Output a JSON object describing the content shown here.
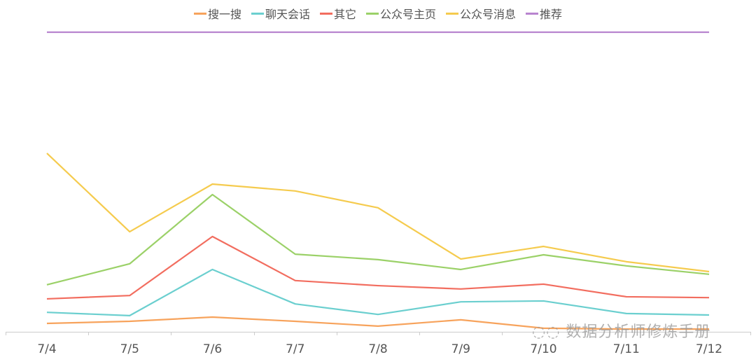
{
  "chart_data": {
    "type": "line",
    "categories": [
      "7/4",
      "7/5",
      "7/6",
      "7/7",
      "7/8",
      "7/9",
      "7/10",
      "7/11",
      "7/12"
    ],
    "ylim": [
      0,
      100
    ],
    "grid": false,
    "legend": "top",
    "series": [
      {
        "name": "搜一搜",
        "color": "#f7a35c",
        "values": [
          2.8,
          3.5,
          4.9,
          3.5,
          1.9,
          4.0,
          1.2,
          0.9,
          0.9
        ]
      },
      {
        "name": "聊天会话",
        "color": "#6bcfcf",
        "values": [
          6.5,
          5.4,
          20.8,
          9.3,
          5.8,
          10.0,
          10.3,
          6.1,
          5.6
        ]
      },
      {
        "name": "其它",
        "color": "#f26d5f",
        "values": [
          11.0,
          12.1,
          31.8,
          17.1,
          15.4,
          14.3,
          15.9,
          11.7,
          11.4
        ]
      },
      {
        "name": "公众号主页",
        "color": "#9bd168",
        "values": [
          15.7,
          22.7,
          45.8,
          25.9,
          24.1,
          20.8,
          25.7,
          22.0,
          19.2
        ]
      },
      {
        "name": "公众号消息",
        "color": "#f5cb4e",
        "values": [
          59.6,
          33.4,
          49.3,
          47.0,
          41.4,
          24.3,
          28.5,
          23.4,
          20.1
        ]
      },
      {
        "name": "推荐",
        "color": "#b884cf",
        "values": [
          100,
          100,
          100,
          100,
          100,
          100,
          100,
          100,
          100
        ]
      }
    ]
  },
  "watermark": "数据分析师修炼手册"
}
